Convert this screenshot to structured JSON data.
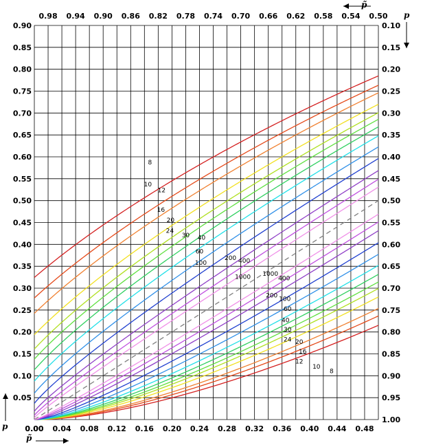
{
  "chart_data": {
    "type": "line",
    "title": "",
    "x_axis_bottom": {
      "label": "p̃",
      "range": [
        0,
        0.5
      ],
      "ticks": [
        "0.00",
        "0.04",
        "0.08",
        "0.12",
        "0.16",
        "0.20",
        "0.24",
        "0.28",
        "0.32",
        "0.36",
        "0.40",
        "0.44",
        "0.48"
      ]
    },
    "x_axis_top": {
      "label": "p̃",
      "range": [
        1.0,
        0.5
      ],
      "ticks": [
        "0.98",
        "0.94",
        "0.90",
        "0.86",
        "0.82",
        "0.78",
        "0.74",
        "0.70",
        "0.66",
        "0.62",
        "0.58",
        "0.54",
        "0.50"
      ]
    },
    "y_axis_left": {
      "label": "p",
      "range": [
        0,
        0.9
      ],
      "ticks": [
        "0.05",
        "0.10",
        "0.15",
        "0.20",
        "0.25",
        "0.30",
        "0.35",
        "0.40",
        "0.45",
        "0.50",
        "0.55",
        "0.60",
        "0.65",
        "0.70",
        "0.75",
        "0.80",
        "0.85",
        "0.90"
      ],
      "origin_label": "0.00"
    },
    "y_axis_right": {
      "label": "p",
      "range": [
        1.0,
        0.1
      ],
      "ticks": [
        "1.00",
        "0.95",
        "0.90",
        "0.85",
        "0.80",
        "0.75",
        "0.70",
        "0.65",
        "0.60",
        "0.55",
        "0.50",
        "0.45",
        "0.40",
        "0.35",
        "0.30",
        "0.25",
        "0.20",
        "0.15",
        "0.10"
      ]
    },
    "grid": true,
    "diagonal": {
      "style": "dashed",
      "color": "#808080"
    },
    "series": [
      {
        "name": "8",
        "color": "#d42020"
      },
      {
        "name": "10",
        "color": "#e54a1a"
      },
      {
        "name": "12",
        "color": "#f08030"
      },
      {
        "name": "16",
        "color": "#f2e020"
      },
      {
        "name": "20",
        "color": "#b0e020"
      },
      {
        "name": "24",
        "color": "#60e040"
      },
      {
        "name": "30",
        "color": "#30d060"
      },
      {
        "name": "40",
        "color": "#20e0e8"
      },
      {
        "name": "60",
        "color": "#3090e8"
      },
      {
        "name": "100",
        "color": "#2040d0"
      },
      {
        "name": "200",
        "color": "#9040c8"
      },
      {
        "name": "400",
        "color": "#c050e0"
      },
      {
        "name": "1000",
        "color": "#f090e8"
      }
    ],
    "upper_labels": [
      {
        "text": "8",
        "x": 0.168,
        "y": 0.587
      },
      {
        "text": "10",
        "x": 0.165,
        "y": 0.536
      },
      {
        "text": "12",
        "x": 0.185,
        "y": 0.523
      },
      {
        "text": "16",
        "x": 0.184,
        "y": 0.478
      },
      {
        "text": "20",
        "x": 0.198,
        "y": 0.455
      },
      {
        "text": "24",
        "x": 0.197,
        "y": 0.43
      },
      {
        "text": "30",
        "x": 0.22,
        "y": 0.42
      },
      {
        "text": "40",
        "x": 0.243,
        "y": 0.415
      },
      {
        "text": "60",
        "x": 0.24,
        "y": 0.383
      },
      {
        "text": "100",
        "x": 0.242,
        "y": 0.357
      },
      {
        "text": "200",
        "x": 0.285,
        "y": 0.368
      },
      {
        "text": "400",
        "x": 0.305,
        "y": 0.362
      },
      {
        "text": "1000",
        "x": 0.303,
        "y": 0.325
      }
    ],
    "lower_labels": [
      {
        "text": "1000",
        "x": 0.343,
        "y": 0.332
      },
      {
        "text": "400",
        "x": 0.363,
        "y": 0.322
      },
      {
        "text": "200",
        "x": 0.345,
        "y": 0.283
      },
      {
        "text": "100",
        "x": 0.364,
        "y": 0.275
      },
      {
        "text": "60",
        "x": 0.368,
        "y": 0.252
      },
      {
        "text": "40",
        "x": 0.365,
        "y": 0.226
      },
      {
        "text": "30",
        "x": 0.368,
        "y": 0.205
      },
      {
        "text": "24",
        "x": 0.368,
        "y": 0.182
      },
      {
        "text": "20",
        "x": 0.385,
        "y": 0.177
      },
      {
        "text": "16",
        "x": 0.39,
        "y": 0.155
      },
      {
        "text": "12",
        "x": 0.385,
        "y": 0.132
      },
      {
        "text": "10",
        "x": 0.41,
        "y": 0.12
      },
      {
        "text": "8",
        "x": 0.432,
        "y": 0.11
      }
    ]
  }
}
